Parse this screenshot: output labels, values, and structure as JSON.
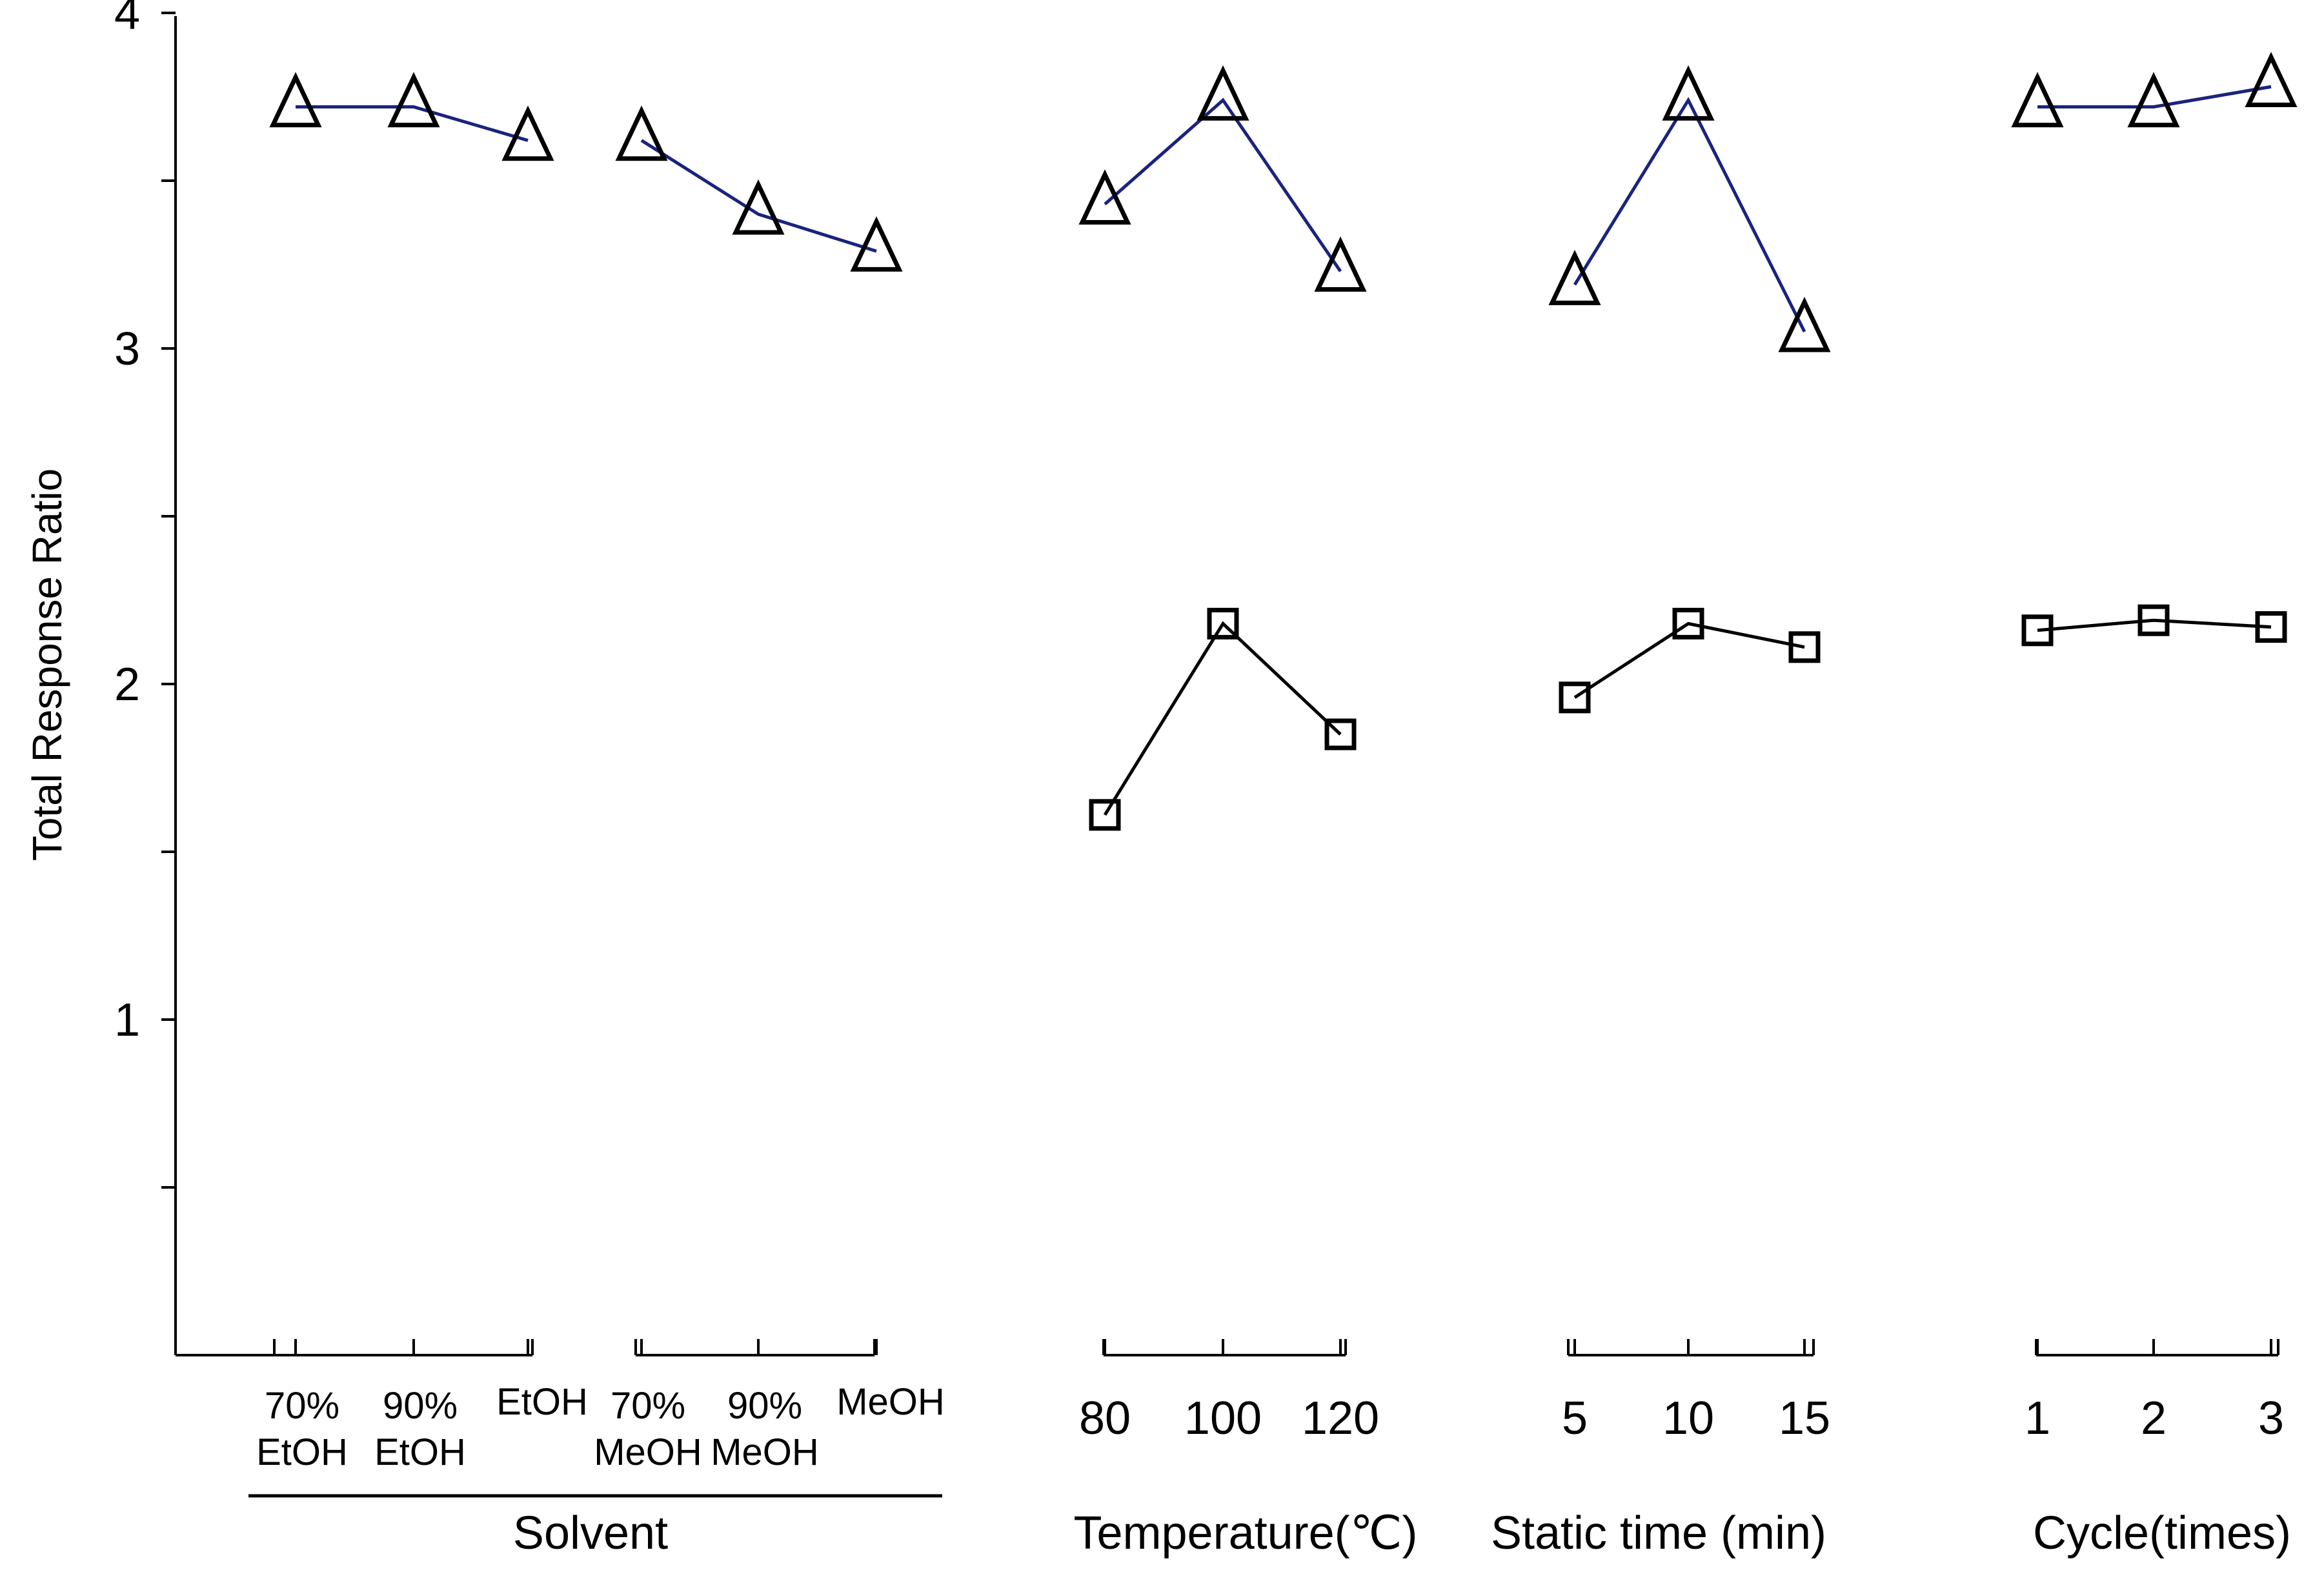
{
  "chart_data": {
    "type": "line",
    "title": "",
    "ylabel": "Total Response Ratio",
    "ylim": [
      0,
      4
    ],
    "y_ticks": [
      1,
      2,
      3,
      4
    ],
    "y_minor_ticks": [
      0.5,
      1.5,
      2.5,
      3.5
    ],
    "grid": false,
    "colors": {
      "triangle_line": "#1a237e",
      "square_line": "#000000",
      "axis": "#000000"
    },
    "groups": [
      {
        "name": "Solvent",
        "label": "Solvent",
        "sections": [
          {
            "categories": [
              [
                "70%",
                "EtOH"
              ],
              [
                "90%",
                "EtOH"
              ],
              [
                "EtOH"
              ]
            ],
            "triangle": [
              3.72,
              3.72,
              3.62
            ],
            "square": null
          },
          {
            "categories": [
              [
                "70%",
                "MeOH"
              ],
              [
                "90%",
                "MeOH"
              ],
              [
                "MeOH"
              ]
            ],
            "triangle": [
              3.62,
              3.4,
              3.29
            ],
            "square": null
          }
        ]
      },
      {
        "name": "Temperature",
        "label": "Temperature(℃)",
        "sections": [
          {
            "categories": [
              [
                "80"
              ],
              [
                "100"
              ],
              [
                "120"
              ]
            ],
            "triangle": [
              3.43,
              3.74,
              3.23
            ],
            "square": [
              1.61,
              2.18,
              1.85
            ]
          }
        ]
      },
      {
        "name": "Static time",
        "label": "Static time (min)",
        "sections": [
          {
            "categories": [
              [
                "5"
              ],
              [
                "10"
              ],
              [
                "15"
              ]
            ],
            "triangle": [
              3.19,
              3.74,
              3.05
            ],
            "square": [
              1.96,
              2.18,
              2.11
            ]
          }
        ]
      },
      {
        "name": "Cycle",
        "label": "Cycle(times)",
        "sections": [
          {
            "categories": [
              [
                "1"
              ],
              [
                "2"
              ],
              [
                "3"
              ]
            ],
            "triangle": [
              3.72,
              3.72,
              3.78
            ],
            "square": [
              2.16,
              2.19,
              2.17
            ]
          }
        ]
      }
    ]
  }
}
